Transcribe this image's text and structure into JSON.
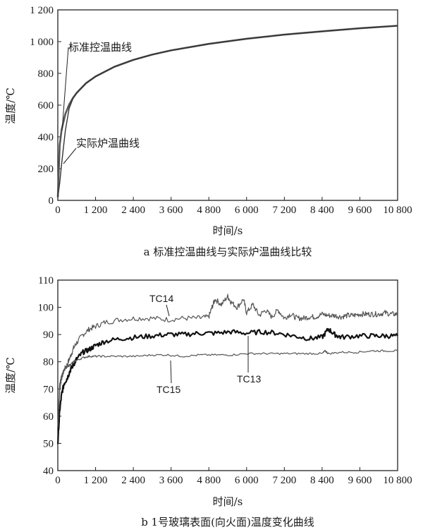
{
  "chart_data": [
    {
      "type": "line",
      "title": "",
      "caption": "a 标准控温曲线与实际炉温曲线比较",
      "xlabel": "时间/s",
      "ylabel": "温度/℃",
      "xlim": [
        0,
        10800
      ],
      "ylim": [
        0,
        1200
      ],
      "x_ticks": [
        0,
        1200,
        2400,
        3600,
        4800,
        6000,
        7200,
        8400,
        9600,
        10800
      ],
      "x_tick_labels": [
        "0",
        "1 200",
        "2 400",
        "3 600",
        "4 800",
        "6 000",
        "7 200",
        "8 400",
        "9 600",
        "10 800"
      ],
      "y_ticks": [
        0,
        200,
        400,
        600,
        800,
        1000,
        1200
      ],
      "y_tick_labels": [
        "0",
        "200",
        "400",
        "600",
        "800",
        "1 000",
        "1 200"
      ],
      "grid": false,
      "annotations": [
        {
          "text": "标准控温曲线",
          "series": "standard"
        },
        {
          "text": "实际炉温曲线",
          "series": "actual"
        }
      ],
      "series": [
        {
          "name": "标准控温曲线",
          "x": [
            0,
            60,
            120,
            240,
            360,
            480,
            600,
            900,
            1200,
            1800,
            2400,
            3000,
            3600,
            4800,
            6000,
            7200,
            8400,
            9600,
            10800
          ],
          "y": [
            20,
            349,
            445,
            544,
            603,
            645,
            678,
            739,
            781,
            842,
            885,
            918,
            945,
            986,
            1018,
            1044,
            1065,
            1084,
            1100
          ]
        },
        {
          "name": "实际炉温曲线",
          "x": [
            0,
            60,
            120,
            240,
            360,
            480,
            600,
            900,
            1200,
            1800,
            2400,
            3000,
            3600,
            4800,
            6000,
            7200,
            8400,
            9600,
            10800
          ],
          "y": [
            20,
            110,
            230,
            440,
            580,
            640,
            675,
            737,
            780,
            842,
            885,
            918,
            945,
            986,
            1018,
            1044,
            1065,
            1084,
            1100
          ]
        }
      ]
    },
    {
      "type": "line",
      "title": "",
      "caption": "b 1号玻璃表面(向火面)温度变化曲线",
      "xlabel": "时间/s",
      "ylabel": "温度/℃",
      "xlim": [
        0,
        10800
      ],
      "ylim": [
        40,
        110
      ],
      "x_ticks": [
        0,
        1200,
        2400,
        3600,
        4800,
        6000,
        7200,
        8400,
        9600,
        10800
      ],
      "x_tick_labels": [
        "0",
        "1 200",
        "2 400",
        "3 600",
        "4 800",
        "6 000",
        "7 200",
        "8 400",
        "9 600",
        "10 800"
      ],
      "y_ticks": [
        40,
        50,
        60,
        70,
        80,
        90,
        100,
        110
      ],
      "y_tick_labels": [
        "40",
        "50",
        "60",
        "70",
        "80",
        "90",
        "100",
        "110"
      ],
      "grid": false,
      "series": [
        {
          "name": "TC14",
          "x": [
            0,
            60,
            120,
            200,
            300,
            400,
            500,
            600,
            800,
            1000,
            1200,
            1500,
            2000,
            2500,
            3000,
            3500,
            4000,
            4500,
            4800,
            4900,
            5000,
            5200,
            5400,
            5500,
            5700,
            5900,
            6000,
            6200,
            6400,
            6600,
            6800,
            7000,
            7200,
            7400,
            7600,
            7800,
            8000,
            8200,
            8400,
            8600,
            8800,
            9000,
            9200,
            9400,
            9600,
            9800,
            10000,
            10200,
            10400,
            10600,
            10800
          ],
          "y": [
            52,
            70,
            74,
            77,
            79,
            82,
            85,
            87,
            90,
            92,
            93,
            94.5,
            95.5,
            96,
            96,
            95.5,
            96,
            96,
            96.5,
            100,
            103,
            101,
            104,
            102,
            100,
            103,
            98,
            101,
            97,
            99,
            96.5,
            99,
            96,
            97.5,
            96,
            96,
            96.5,
            96.5,
            97.5,
            97,
            97,
            96.5,
            97,
            97,
            97.5,
            97.5,
            97.5,
            97.5,
            98,
            97.5,
            97.5
          ]
        },
        {
          "name": "TC13",
          "x": [
            0,
            60,
            120,
            200,
            300,
            400,
            500,
            600,
            800,
            1000,
            1200,
            1500,
            2000,
            2500,
            3000,
            3500,
            4000,
            4500,
            5000,
            5500,
            6000,
            6500,
            7000,
            7500,
            8000,
            8400,
            8600,
            8800,
            9000,
            9500,
            10000,
            10400,
            10800
          ],
          "y": [
            50,
            62,
            68,
            72,
            74,
            77,
            79,
            81,
            83.5,
            84.5,
            86,
            87.5,
            88.5,
            89,
            89.5,
            90,
            90,
            90.5,
            90.5,
            91,
            90.5,
            91,
            90.5,
            89.5,
            88.5,
            89,
            92,
            90,
            89,
            89.5,
            89.5,
            89.5,
            89.5
          ]
        },
        {
          "name": "TC15",
          "x": [
            0,
            60,
            120,
            200,
            300,
            400,
            500,
            600,
            800,
            1000,
            1200,
            1500,
            2000,
            2500,
            3000,
            3500,
            4000,
            4500,
            5000,
            5500,
            6000,
            6500,
            7000,
            7500,
            8000,
            8400,
            8500,
            8600,
            9000,
            9500,
            10000,
            10400,
            10800
          ],
          "y": [
            56,
            72,
            75,
            77,
            78,
            79,
            80,
            80.5,
            81.5,
            82,
            82,
            82,
            82,
            82,
            82.5,
            82.5,
            82,
            82.5,
            82.5,
            82.5,
            83,
            83,
            83,
            83,
            83,
            83,
            84,
            83,
            83.5,
            83.5,
            84,
            84,
            84
          ]
        }
      ]
    }
  ]
}
